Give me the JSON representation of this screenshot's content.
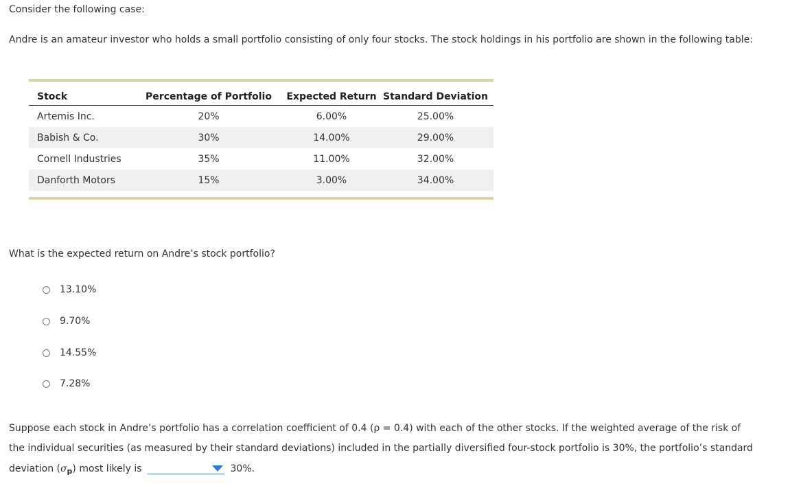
{
  "intro": "Consider the following case:",
  "case_text": "Andre is an amateur investor who holds a small portfolio consisting of only four stocks. The stock holdings in his portfolio are shown in the following table:",
  "table": {
    "headers": {
      "stock": "Stock",
      "percentage": "Percentage of Portfolio",
      "expected_return": "Expected Return",
      "std_dev": "Standard Deviation"
    },
    "rows": [
      {
        "stock": "Artemis Inc.",
        "percentage": "20%",
        "expected_return": "6.00%",
        "std_dev": "25.00%"
      },
      {
        "stock": "Babish & Co.",
        "percentage": "30%",
        "expected_return": "14.00%",
        "std_dev": "29.00%"
      },
      {
        "stock": "Cornell Industries",
        "percentage": "35%",
        "expected_return": "11.00%",
        "std_dev": "32.00%"
      },
      {
        "stock": "Danforth Motors",
        "percentage": "15%",
        "expected_return": "3.00%",
        "std_dev": "34.00%"
      }
    ]
  },
  "question": "What is the expected return on Andre’s stock portfolio?",
  "options": [
    "13.10%",
    "9.70%",
    "14.55%",
    "7.28%"
  ],
  "paragraph2": {
    "line1": "Suppose each stock in Andre’s portfolio has a correlation coefficient of 0.4 (ρ = 0.4) with each of the other stocks. If the weighted average of the risk of",
    "line2": "the individual securities (as measured by their standard deviations) included in the partially diversified four-stock portfolio is 30%, the portfolio’s standard",
    "line3_pre": "deviation (",
    "sigma": "σ",
    "sub": "p",
    "line3_mid": ") most likely is",
    "dropdown_value": "",
    "line3_post": "30%."
  },
  "colors": {
    "table_rule": "#ddd3a8",
    "row_shade": "#f0f0f0",
    "dropdown_caret": "#2e7bd6",
    "text": "#333333"
  }
}
